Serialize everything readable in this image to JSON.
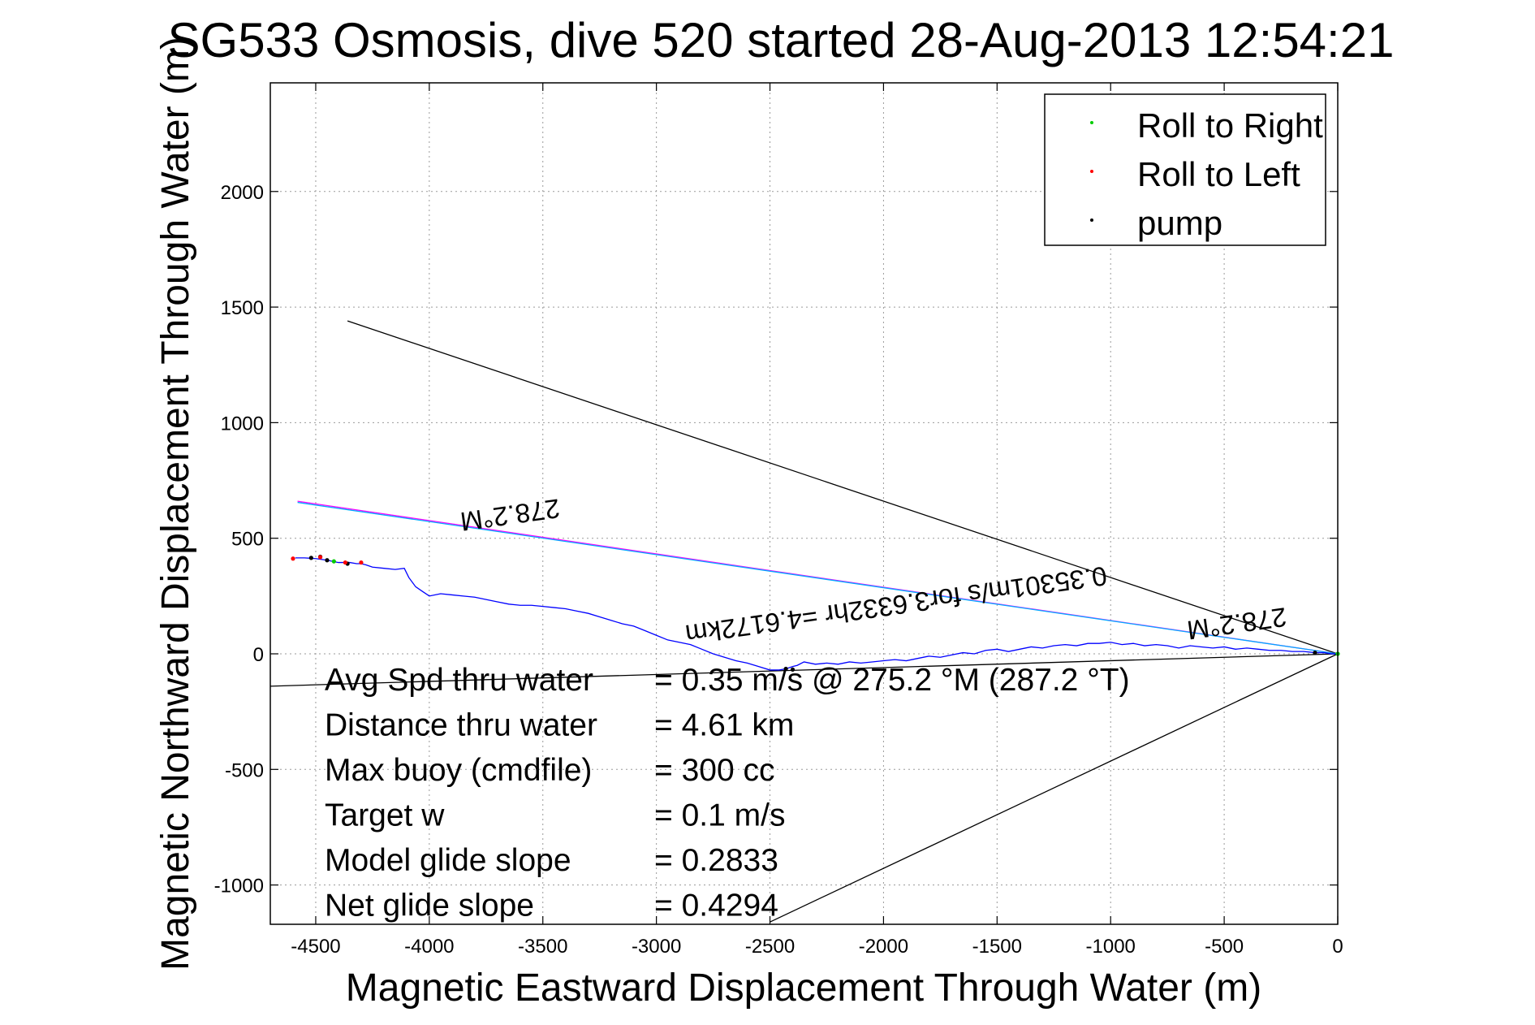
{
  "chart_data": {
    "type": "line",
    "title": "SG533 Osmosis, dive 520 started 28-Aug-2013 12:54:21",
    "xlabel": "Magnetic Eastward Displacement Through Water (m)",
    "ylabel": "Magnetic Northward Displacement Through Water (m)",
    "xlim": [
      -4700,
      0
    ],
    "ylim": [
      -1170,
      2470
    ],
    "xticks": [
      -4500,
      -4000,
      -3500,
      -3000,
      -2500,
      -2000,
      -1500,
      -1000,
      -500,
      0
    ],
    "yticks": [
      -1000,
      -500,
      0,
      500,
      1000,
      1500,
      2000
    ],
    "grid": true,
    "legend": {
      "placement": "top-right",
      "entries": [
        {
          "label": "Roll to Right",
          "color": "#00cc00"
        },
        {
          "label": "Roll to Left",
          "color": "#ff0000"
        },
        {
          "label": "pump",
          "color": "#000000"
        }
      ]
    },
    "series": [
      {
        "color": "#0000ff",
        "x": [
          0,
          -30,
          -60,
          -100,
          -150,
          -200,
          -250,
          -300,
          -350,
          -400,
          -450,
          -500,
          -550,
          -600,
          -650,
          -700,
          -750,
          -800,
          -850,
          -900,
          -950,
          -1000,
          -1050,
          -1100,
          -1150,
          -1200,
          -1250,
          -1300,
          -1350,
          -1400,
          -1450,
          -1500,
          -1550,
          -1600,
          -1650,
          -1700,
          -1750,
          -1800,
          -1850,
          -1900,
          -1950,
          -2000,
          -2050,
          -2100,
          -2150,
          -2200,
          -2250,
          -2300,
          -2350,
          -2380,
          -2400,
          -2430,
          -2460,
          -2500,
          -2550,
          -2600,
          -2650,
          -2700,
          -2750,
          -2800,
          -2850,
          -2900,
          -2950,
          -3000,
          -3050,
          -3100,
          -3150,
          -3200,
          -3250,
          -3300,
          -3350,
          -3400,
          -3450,
          -3500,
          -3550,
          -3600,
          -3650,
          -3700,
          -3750,
          -3800,
          -3850,
          -3900,
          -3950,
          -4000,
          -4030,
          -4060,
          -4090,
          -4110,
          -4150,
          -4200,
          -4250,
          -4280,
          -4300,
          -4320,
          -4350,
          -4400,
          -4450,
          -4500,
          -4550,
          -4590
        ],
        "y": [
          0,
          0,
          5,
          5,
          10,
          10,
          15,
          15,
          20,
          25,
          20,
          30,
          25,
          30,
          35,
          25,
          35,
          40,
          35,
          45,
          40,
          50,
          45,
          45,
          35,
          40,
          35,
          25,
          30,
          20,
          10,
          20,
          15,
          0,
          5,
          -5,
          -15,
          -10,
          -20,
          -30,
          -25,
          -30,
          -35,
          -40,
          -35,
          -45,
          -40,
          -45,
          -35,
          -50,
          -55,
          -65,
          -70,
          -70,
          -55,
          -40,
          -30,
          -15,
          0,
          20,
          40,
          50,
          60,
          80,
          100,
          120,
          130,
          145,
          160,
          175,
          185,
          195,
          200,
          205,
          210,
          210,
          215,
          225,
          235,
          245,
          250,
          255,
          260,
          250,
          270,
          290,
          330,
          370,
          365,
          370,
          375,
          385,
          390,
          390,
          395,
          395,
          405,
          412,
          415,
          415
        ]
      }
    ],
    "lines": [
      {
        "color": "#000000",
        "x": [
          0,
          -4360
        ],
        "y": [
          0,
          1440
        ]
      },
      {
        "color": "#ff00ff",
        "x": [
          0,
          -4580
        ],
        "y": [
          0,
          660
        ]
      },
      {
        "color": "#00aaff",
        "x": [
          0,
          -4580
        ],
        "y": [
          0,
          655
        ]
      },
      {
        "color": "#000000",
        "x": [
          0,
          -4700
        ],
        "y": [
          0,
          -140
        ]
      },
      {
        "color": "#000000",
        "x": [
          0,
          -2500
        ],
        "y": [
          0,
          -1160
        ]
      }
    ],
    "markers": {
      "pump": {
        "color": "#000000",
        "x": [
          -4520,
          -4480,
          -4450,
          -4360,
          -2430,
          -2400,
          -100
        ],
        "y": [
          415,
          420,
          405,
          390,
          -65,
          -68,
          5
        ]
      },
      "roll_left": {
        "color": "#ff0000",
        "x": [
          -4600,
          -4480,
          -4370,
          -4300
        ],
        "y": [
          412,
          418,
          395,
          395
        ]
      },
      "roll_right": {
        "color": "#00cc00",
        "x": [
          -4420,
          0
        ],
        "y": [
          400,
          0
        ]
      }
    },
    "annotations": [
      {
        "text": "278.2°M",
        "x": -3650,
        "y": 640,
        "rotation": 172
      },
      {
        "text": "278.2°M",
        "x": -450,
        "y": 170,
        "rotation": 172
      },
      {
        "text": "0.35301m/s for3.6332hr =4.6172km",
        "x": -1950,
        "y": 250,
        "rotation": 172
      }
    ],
    "stats": [
      {
        "label": "Avg Spd thru water",
        "value": "=  0.35 m/s @ 275.2 °M (287.2 °T)"
      },
      {
        "label": "Distance thru water",
        "value": "=  4.61 km"
      },
      {
        "label": "Max buoy (cmdfile)",
        "value": "= 300 cc"
      },
      {
        "label": "Target w",
        "value": "= 0.1 m/s"
      },
      {
        "label": "Model glide slope",
        "value": "= 0.2833"
      },
      {
        "label": "Net glide slope",
        "value": "= 0.4294"
      }
    ]
  }
}
